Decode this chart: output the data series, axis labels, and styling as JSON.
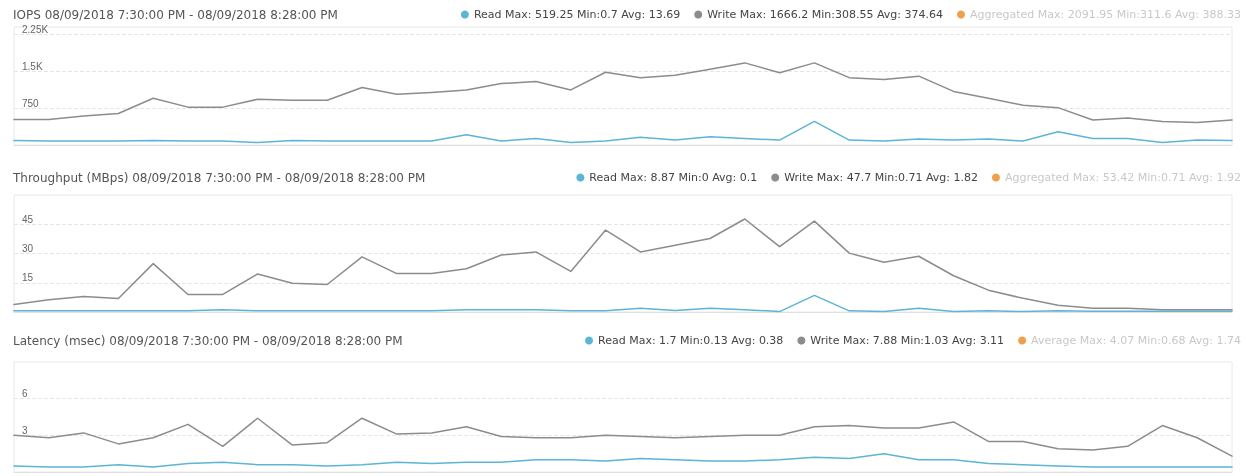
{
  "chart_data": [
    {
      "type": "line",
      "title": "IOPS 08/09/2018 7:30:00 PM - 08/09/2018 8:28:00 PM",
      "categories": [
        null,
        null,
        null,
        null,
        null,
        null,
        null,
        null,
        null,
        null,
        null,
        null,
        null,
        null,
        null,
        null,
        null,
        null,
        null,
        null,
        null,
        null,
        null,
        null,
        null,
        null,
        null,
        null,
        null,
        null,
        null,
        null,
        null,
        null,
        null,
        null
      ],
      "ylim": [
        0,
        2400
      ],
      "yticks": [
        {
          "value": 750,
          "label": "750"
        },
        {
          "value": 1500,
          "label": "1.5K"
        },
        {
          "value": 2250,
          "label": "2.25K"
        }
      ],
      "grid": "y",
      "legend": "top right",
      "marker": "none",
      "line_style": "solid",
      "tick_labels": "y",
      "series": [
        {
          "name": "Read Max: 519.25 Min:0.7 Avg: 13.69",
          "color": "#5bb5d5",
          "values": [
            90,
            80,
            80,
            80,
            90,
            80,
            80,
            50,
            90,
            80,
            80,
            80,
            80,
            210,
            80,
            130,
            50,
            80,
            160,
            100,
            170,
            130,
            100,
            480,
            100,
            80,
            120,
            100,
            120,
            80,
            270,
            130,
            130,
            50,
            100,
            90
          ]
        },
        {
          "name": "Write Max: 1666.2 Min:308.55 Avg: 374.64",
          "color": "#8c8c8c",
          "values": [
            520,
            520,
            590,
            640,
            950,
            770,
            770,
            930,
            910,
            910,
            1170,
            1030,
            1070,
            1120,
            1250,
            1290,
            1120,
            1480,
            1370,
            1420,
            1540,
            1670,
            1470,
            1670,
            1370,
            1330,
            1400,
            1090,
            950,
            810,
            760,
            510,
            550,
            480,
            460,
            510
          ]
        },
        {
          "name": "Aggregated Max: 2091.95 Min:311.6 Avg: 388.33",
          "color": "#f0a04b",
          "values": [
            null,
            null,
            null,
            null,
            null,
            null,
            null,
            null,
            null,
            null,
            null,
            null,
            null,
            null,
            null,
            null,
            null,
            null,
            null,
            null,
            null,
            null,
            null,
            null,
            null,
            null,
            null,
            null,
            null,
            null,
            null,
            null,
            null,
            null,
            null,
            null
          ]
        }
      ]
    },
    {
      "type": "line",
      "title": "Throughput (MBps) 08/09/2018 7:30:00 PM - 08/09/2018 8:28:00 PM",
      "categories": [
        null,
        null,
        null,
        null,
        null,
        null,
        null,
        null,
        null,
        null,
        null,
        null,
        null,
        null,
        null,
        null,
        null,
        null,
        null,
        null,
        null,
        null,
        null,
        null,
        null,
        null,
        null,
        null,
        null,
        null,
        null,
        null,
        null,
        null,
        null,
        null
      ],
      "ylim": [
        0,
        60
      ],
      "yticks": [
        15,
        30,
        45
      ],
      "grid": "y",
      "legend": "top right",
      "marker": "none",
      "line_style": "solid",
      "tick_labels": "y",
      "series": [
        {
          "name": "Read Max: 8.87 Min:0 Avg: 0.1",
          "color": "#5bb5d5",
          "values": [
            0.6,
            0.6,
            0.6,
            0.6,
            0.6,
            0.6,
            1.2,
            0.6,
            0.6,
            0.6,
            0.6,
            0.6,
            0.6,
            1.2,
            1.2,
            1.2,
            0.6,
            0.6,
            1.9,
            0.8,
            1.9,
            1.2,
            0.2,
            8.5,
            0.6,
            0.2,
            1.9,
            0.2,
            0.6,
            0.2,
            0.6,
            0.4,
            0.4,
            0.4,
            0.4,
            0.4
          ]
        },
        {
          "name": "Write Max: 47.7 Min:0.71 Avg: 1.82",
          "color": "#8c8c8c",
          "values": [
            3.8,
            6.3,
            8,
            6.9,
            24.8,
            9,
            9,
            19.5,
            14.7,
            14.1,
            28.3,
            19.7,
            19.7,
            22.2,
            29.2,
            30.8,
            20.8,
            42,
            30.8,
            34.2,
            37.7,
            47.7,
            33.5,
            46.6,
            30.2,
            25.5,
            28.6,
            18.6,
            11.2,
            7,
            3.5,
            1.9,
            1.9,
            1.2,
            1.2,
            1.2
          ]
        },
        {
          "name": "Aggregated Max: 53.42 Min:0.71 Avg: 1.92",
          "color": "#f0a04b",
          "values": [
            null,
            null,
            null,
            null,
            null,
            null,
            null,
            null,
            null,
            null,
            null,
            null,
            null,
            null,
            null,
            null,
            null,
            null,
            null,
            null,
            null,
            null,
            null,
            null,
            null,
            null,
            null,
            null,
            null,
            null,
            null,
            null,
            null,
            null,
            null,
            null
          ]
        }
      ]
    },
    {
      "type": "line",
      "title": "Latency (msec) 08/09/2018 7:30:00 PM - 08/09/2018 8:28:00 PM",
      "categories": [
        null,
        null,
        null,
        null,
        null,
        null,
        null,
        null,
        null,
        null,
        null,
        null,
        null,
        null,
        null,
        null,
        null,
        null,
        null,
        null,
        null,
        null,
        null,
        null,
        null,
        null,
        null,
        null,
        null,
        null,
        null,
        null,
        null,
        null,
        null,
        null
      ],
      "ylim": [
        0,
        9
      ],
      "yticks": [
        3,
        6
      ],
      "grid": "y",
      "legend": "top right",
      "marker": "none",
      "line_style": "solid",
      "tick_labels": "y",
      "series": [
        {
          "name": "Read Max: 1.7 Min:0.13 Avg: 0.38",
          "color": "#5bb5d5",
          "values": [
            0.5,
            0.4,
            0.4,
            0.6,
            0.4,
            0.7,
            0.8,
            0.6,
            0.6,
            0.5,
            0.6,
            0.8,
            0.7,
            0.8,
            0.8,
            1,
            1,
            0.9,
            1.1,
            1,
            0.9,
            0.9,
            1,
            1.2,
            1.1,
            1.5,
            1,
            1,
            0.7,
            0.6,
            0.5,
            0.4,
            0.4,
            0.4,
            0.4,
            0.4
          ]
        },
        {
          "name": "Write Max: 7.88 Min:1.03 Avg: 3.11",
          "color": "#8c8c8c",
          "values": [
            3,
            2.8,
            3.2,
            2.3,
            2.8,
            3.9,
            2.1,
            4.4,
            2.2,
            2.4,
            4.4,
            3.1,
            3.2,
            3.7,
            2.9,
            2.8,
            2.8,
            3,
            2.9,
            2.8,
            2.9,
            3,
            3,
            3.7,
            3.8,
            3.6,
            3.6,
            4.1,
            2.5,
            2.5,
            1.9,
            1.8,
            2.1,
            3.8,
            2.8,
            1.3
          ]
        },
        {
          "name": "Average Max: 4.07 Min:0.68 Avg: 1.74",
          "color": "#f0a04b",
          "values": [
            null,
            null,
            null,
            null,
            null,
            null,
            null,
            null,
            null,
            null,
            null,
            null,
            null,
            null,
            null,
            null,
            null,
            null,
            null,
            null,
            null,
            null,
            null,
            null,
            null,
            null,
            null,
            null,
            null,
            null,
            null,
            null,
            null,
            null,
            null,
            null
          ]
        }
      ]
    }
  ]
}
